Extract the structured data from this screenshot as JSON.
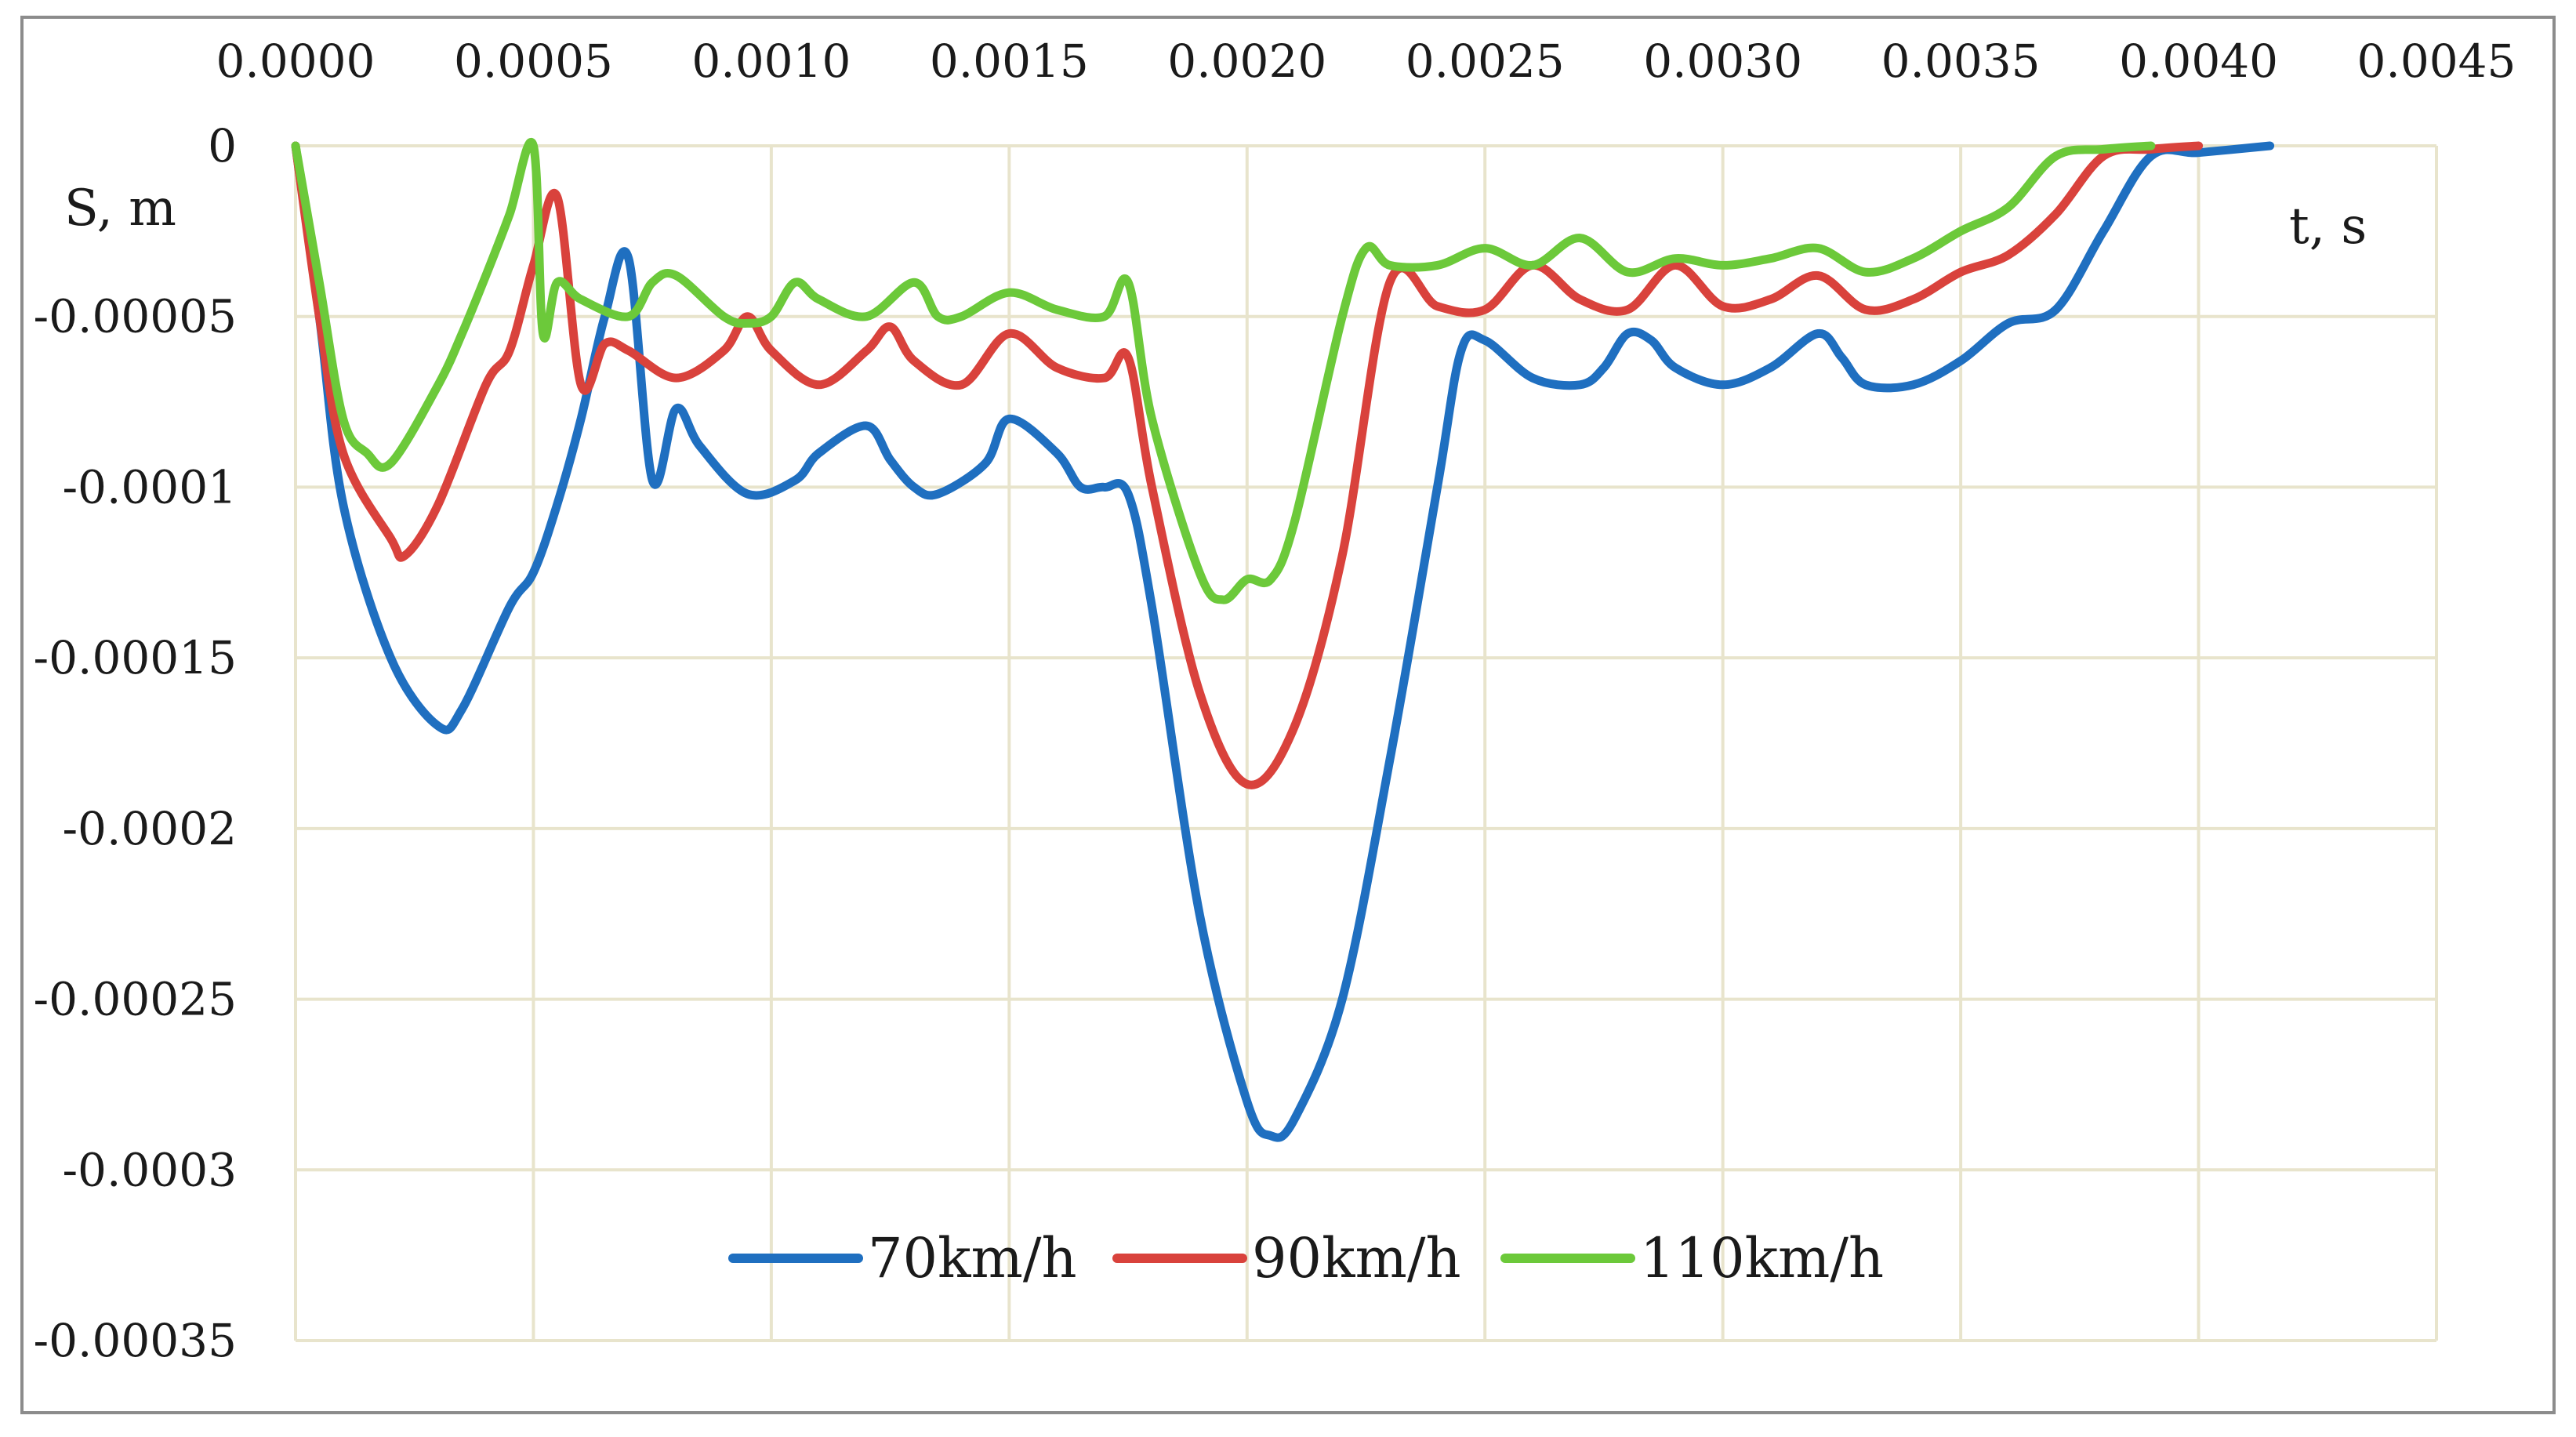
{
  "chart_data": {
    "type": "line",
    "title": "",
    "xlabel": "t, s",
    "ylabel": "S, m",
    "xlim": [
      0,
      0.0045
    ],
    "ylim": [
      -0.00035,
      0
    ],
    "x_ticks": [
      {
        "value": 0.0,
        "label": "0.0000"
      },
      {
        "value": 0.0005,
        "label": "0.0005"
      },
      {
        "value": 0.001,
        "label": "0.0010"
      },
      {
        "value": 0.0015,
        "label": "0.0015"
      },
      {
        "value": 0.002,
        "label": "0.0020"
      },
      {
        "value": 0.0025,
        "label": "0.0025"
      },
      {
        "value": 0.003,
        "label": "0.0030"
      },
      {
        "value": 0.0035,
        "label": "0.0035"
      },
      {
        "value": 0.004,
        "label": "0.0040"
      },
      {
        "value": 0.0045,
        "label": "0.0045"
      }
    ],
    "y_ticks": [
      {
        "value": 0,
        "label": "0"
      },
      {
        "value": -5e-05,
        "label": "-0.00005"
      },
      {
        "value": -0.0001,
        "label": "-0.0001"
      },
      {
        "value": -0.00015,
        "label": "-0.00015"
      },
      {
        "value": -0.0002,
        "label": "-0.0002"
      },
      {
        "value": -0.00025,
        "label": "-0.00025"
      },
      {
        "value": -0.0003,
        "label": "-0.0003"
      },
      {
        "value": -0.00035,
        "label": "-0.00035"
      }
    ],
    "grid": true,
    "legend_position": "bottom-center",
    "series": [
      {
        "name": "70km/h",
        "color": "#1f6fc0",
        "points": [
          [
            0.0,
            0.0
          ],
          [
            5e-05,
            -5e-05
          ],
          [
            0.0001,
            -0.000105
          ],
          [
            0.0002,
            -0.00015
          ],
          [
            0.0003,
            -0.00017
          ],
          [
            0.00035,
            -0.000165
          ],
          [
            0.00045,
            -0.000135
          ],
          [
            0.0005,
            -0.000125
          ],
          [
            0.00055,
            -0.000105
          ],
          [
            0.0006,
            -8e-05
          ],
          [
            0.00065,
            -5e-05
          ],
          [
            0.0007,
            -3.3e-05
          ],
          [
            0.00075,
            -9.8e-05
          ],
          [
            0.0008,
            -7.7e-05
          ],
          [
            0.00085,
            -8.8e-05
          ],
          [
            0.00095,
            -0.000102
          ],
          [
            0.00105,
            -9.8e-05
          ],
          [
            0.0011,
            -9e-05
          ],
          [
            0.0012,
            -8.2e-05
          ],
          [
            0.00125,
            -9.2e-05
          ],
          [
            0.0013,
            -0.0001
          ],
          [
            0.00135,
            -0.000102
          ],
          [
            0.00145,
            -9.3e-05
          ],
          [
            0.0015,
            -8e-05
          ],
          [
            0.0016,
            -9e-05
          ],
          [
            0.00165,
            -0.0001
          ],
          [
            0.0017,
            -0.0001
          ],
          [
            0.00175,
            -0.000102
          ],
          [
            0.0018,
            -0.000135
          ],
          [
            0.0019,
            -0.000225
          ],
          [
            0.002,
            -0.00028
          ],
          [
            0.00205,
            -0.00029
          ],
          [
            0.0021,
            -0.000285
          ],
          [
            0.0022,
            -0.00025
          ],
          [
            0.0023,
            -0.00018
          ],
          [
            0.0024,
            -0.0001
          ],
          [
            0.00245,
            -6e-05
          ],
          [
            0.0025,
            -5.7e-05
          ],
          [
            0.0026,
            -6.8e-05
          ],
          [
            0.0027,
            -7e-05
          ],
          [
            0.00275,
            -6.5e-05
          ],
          [
            0.0028,
            -5.5e-05
          ],
          [
            0.00285,
            -5.7e-05
          ],
          [
            0.0029,
            -6.5e-05
          ],
          [
            0.003,
            -7e-05
          ],
          [
            0.0031,
            -6.5e-05
          ],
          [
            0.0032,
            -5.5e-05
          ],
          [
            0.00325,
            -6.2e-05
          ],
          [
            0.0033,
            -7e-05
          ],
          [
            0.0034,
            -7e-05
          ],
          [
            0.0035,
            -6.3e-05
          ],
          [
            0.0036,
            -5.2e-05
          ],
          [
            0.0037,
            -4.8e-05
          ],
          [
            0.0038,
            -2.5e-05
          ],
          [
            0.0039,
            -3e-06
          ],
          [
            0.004,
            -2e-06
          ],
          [
            0.00415,
            0.0
          ]
        ]
      },
      {
        "name": "90km/h",
        "color": "#d9423c",
        "points": [
          [
            0.0,
            0.0
          ],
          [
            5e-05,
            -5e-05
          ],
          [
            0.0001,
            -9e-05
          ],
          [
            0.0002,
            -0.000115
          ],
          [
            0.00023,
            -0.00012
          ],
          [
            0.0003,
            -0.000105
          ],
          [
            0.0004,
            -7e-05
          ],
          [
            0.00045,
            -6e-05
          ],
          [
            0.0005,
            -3.5e-05
          ],
          [
            0.00055,
            -1.5e-05
          ],
          [
            0.0006,
            -7e-05
          ],
          [
            0.00065,
            -5.8e-05
          ],
          [
            0.0007,
            -6e-05
          ],
          [
            0.0008,
            -6.8e-05
          ],
          [
            0.0009,
            -6e-05
          ],
          [
            0.00095,
            -5e-05
          ],
          [
            0.001,
            -6e-05
          ],
          [
            0.0011,
            -7e-05
          ],
          [
            0.0012,
            -6e-05
          ],
          [
            0.00125,
            -5.3e-05
          ],
          [
            0.0013,
            -6.3e-05
          ],
          [
            0.0014,
            -7e-05
          ],
          [
            0.0015,
            -5.5e-05
          ],
          [
            0.0016,
            -6.5e-05
          ],
          [
            0.0017,
            -6.8e-05
          ],
          [
            0.00175,
            -6.2e-05
          ],
          [
            0.0018,
            -0.0001
          ],
          [
            0.0019,
            -0.00016
          ],
          [
            0.002,
            -0.000187
          ],
          [
            0.0021,
            -0.00017
          ],
          [
            0.0022,
            -0.00012
          ],
          [
            0.0023,
            -4e-05
          ],
          [
            0.0024,
            -4.7e-05
          ],
          [
            0.0025,
            -4.8e-05
          ],
          [
            0.0026,
            -3.5e-05
          ],
          [
            0.0027,
            -4.5e-05
          ],
          [
            0.0028,
            -4.8e-05
          ],
          [
            0.0029,
            -3.5e-05
          ],
          [
            0.003,
            -4.7e-05
          ],
          [
            0.0031,
            -4.5e-05
          ],
          [
            0.0032,
            -3.8e-05
          ],
          [
            0.0033,
            -4.8e-05
          ],
          [
            0.0034,
            -4.5e-05
          ],
          [
            0.0035,
            -3.7e-05
          ],
          [
            0.0036,
            -3.2e-05
          ],
          [
            0.0037,
            -2e-05
          ],
          [
            0.0038,
            -3e-06
          ],
          [
            0.0039,
            -1e-06
          ],
          [
            0.004,
            0.0
          ]
        ]
      },
      {
        "name": "110km/h",
        "color": "#6cc93a",
        "points": [
          [
            0.0,
            0.0
          ],
          [
            5e-05,
            -4e-05
          ],
          [
            0.0001,
            -8e-05
          ],
          [
            0.00015,
            -9e-05
          ],
          [
            0.0002,
            -9.3e-05
          ],
          [
            0.0003,
            -7e-05
          ],
          [
            0.00035,
            -5.5e-05
          ],
          [
            0.0004,
            -3.8e-05
          ],
          [
            0.00045,
            -2e-05
          ],
          [
            0.0005,
            0.0
          ],
          [
            0.00052,
            -5.5e-05
          ],
          [
            0.00055,
            -4e-05
          ],
          [
            0.0006,
            -4.5e-05
          ],
          [
            0.0007,
            -5e-05
          ],
          [
            0.00075,
            -4e-05
          ],
          [
            0.0008,
            -3.8e-05
          ],
          [
            0.0009,
            -5e-05
          ],
          [
            0.00095,
            -5.2e-05
          ],
          [
            0.001,
            -5e-05
          ],
          [
            0.00105,
            -4e-05
          ],
          [
            0.0011,
            -4.5e-05
          ],
          [
            0.0012,
            -5e-05
          ],
          [
            0.0013,
            -4e-05
          ],
          [
            0.00135,
            -5e-05
          ],
          [
            0.0014,
            -5e-05
          ],
          [
            0.0015,
            -4.3e-05
          ],
          [
            0.0016,
            -4.8e-05
          ],
          [
            0.0017,
            -5e-05
          ],
          [
            0.00175,
            -4e-05
          ],
          [
            0.0018,
            -8e-05
          ],
          [
            0.0019,
            -0.000125
          ],
          [
            0.00195,
            -0.000133
          ],
          [
            0.002,
            -0.000127
          ],
          [
            0.00205,
            -0.000127
          ],
          [
            0.0021,
            -0.00011
          ],
          [
            0.0022,
            -5e-05
          ],
          [
            0.00225,
            -3e-05
          ],
          [
            0.0023,
            -3.5e-05
          ],
          [
            0.0024,
            -3.5e-05
          ],
          [
            0.0025,
            -3e-05
          ],
          [
            0.0026,
            -3.5e-05
          ],
          [
            0.0027,
            -2.7e-05
          ],
          [
            0.0028,
            -3.7e-05
          ],
          [
            0.0029,
            -3.3e-05
          ],
          [
            0.003,
            -3.5e-05
          ],
          [
            0.0031,
            -3.3e-05
          ],
          [
            0.0032,
            -3e-05
          ],
          [
            0.0033,
            -3.7e-05
          ],
          [
            0.0034,
            -3.3e-05
          ],
          [
            0.0035,
            -2.5e-05
          ],
          [
            0.0036,
            -1.8e-05
          ],
          [
            0.0037,
            -3e-06
          ],
          [
            0.0038,
            -1e-06
          ],
          [
            0.0039,
            0.0
          ]
        ]
      }
    ]
  }
}
